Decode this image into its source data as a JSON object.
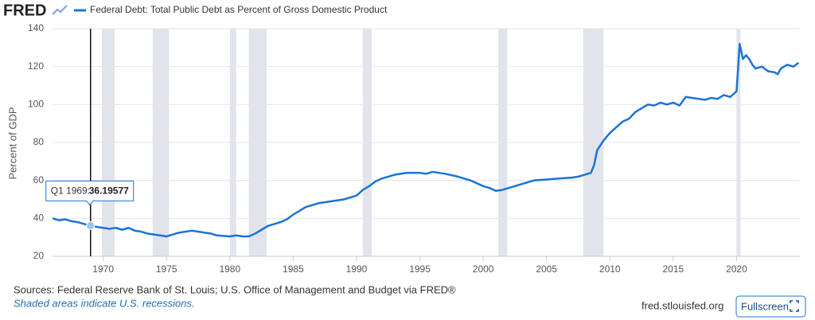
{
  "header": {
    "logo": "FRED"
  },
  "chart_data": {
    "type": "line",
    "y_label": "Percent of GDP",
    "xlim": [
      1966,
      2025
    ],
    "ylim": [
      20,
      140
    ],
    "xticks": [
      1970,
      1975,
      1980,
      1985,
      1990,
      1995,
      2000,
      2005,
      2010,
      2015,
      2020
    ],
    "yticks": [
      20,
      40,
      60,
      80,
      100,
      120,
      140
    ],
    "grid": true,
    "recession_color": "#e1e4ea",
    "recessions": [
      [
        1969.9,
        1970.9
      ],
      [
        1973.9,
        1975.2
      ],
      [
        1980.0,
        1980.5
      ],
      [
        1981.5,
        1982.9
      ],
      [
        1990.5,
        1991.2
      ],
      [
        2001.2,
        2001.9
      ],
      [
        2007.9,
        2009.5
      ],
      [
        2020.0,
        2020.3
      ]
    ],
    "series": [
      {
        "name": "Federal Debt: Total Public Debt as Percent of Gross Domestic Product",
        "color": "#1a74d6",
        "x": [
          1966,
          1966.5,
          1967,
          1967.5,
          1968,
          1968.5,
          1969,
          1969.5,
          1970,
          1970.5,
          1971,
          1971.5,
          1972,
          1972.5,
          1973,
          1973.5,
          1974,
          1974.5,
          1975,
          1975.5,
          1976,
          1977,
          1977.5,
          1978,
          1978.5,
          1979,
          1980,
          1980.5,
          1981,
          1981.5,
          1982,
          1982.5,
          1983,
          1983.5,
          1984,
          1984.5,
          1985,
          1985.5,
          1986,
          1987,
          1988,
          1989,
          1990,
          1990.5,
          1991,
          1991.5,
          1992,
          1993,
          1994,
          1995,
          1995.5,
          1996,
          1997,
          1998,
          1999,
          2000,
          2000.5,
          2001,
          2001.5,
          2002,
          2003,
          2004,
          2005,
          2006,
          2007,
          2007.5,
          2008,
          2008.5,
          2008.75,
          2009,
          2009.5,
          2010,
          2010.5,
          2011,
          2011.5,
          2012,
          2012.5,
          2013,
          2013.5,
          2014,
          2014.5,
          2015,
          2015.5,
          2016,
          2016.5,
          2017,
          2017.5,
          2018,
          2018.5,
          2019,
          2019.5,
          2020,
          2020.25,
          2020.5,
          2020.75,
          2021,
          2021.25,
          2021.5,
          2022,
          2022.5,
          2023,
          2023.25,
          2023.5,
          2024,
          2024.5,
          2024.9
        ],
        "values": [
          40,
          39,
          39.5,
          38.5,
          38,
          37,
          36.19577,
          35.5,
          35,
          34.5,
          35,
          34,
          35,
          33.5,
          33,
          32,
          31.5,
          31,
          30.5,
          31.5,
          32.5,
          33.5,
          33,
          32.5,
          32,
          31,
          30.5,
          31,
          30.5,
          30.5,
          32,
          34,
          36,
          37,
          38,
          39.5,
          42,
          44,
          46,
          48,
          49,
          50,
          52,
          55,
          57,
          59.5,
          61,
          63,
          64,
          64,
          63.5,
          64.5,
          63.5,
          62,
          60,
          57,
          56,
          54.5,
          55,
          56,
          58,
          60,
          60.5,
          61,
          61.5,
          62,
          63,
          64,
          68,
          76,
          81,
          85,
          88,
          91,
          92.5,
          96,
          98,
          100,
          99.5,
          101,
          100,
          101,
          99.5,
          104,
          103.5,
          103,
          102.5,
          103.5,
          103,
          105,
          104,
          107,
          132,
          124,
          126,
          124,
          121,
          119,
          120,
          117.5,
          117,
          116,
          119,
          121,
          120,
          122
        ]
      }
    ],
    "tooltip": {
      "x": 1969,
      "label": "Q1 1969:",
      "value": 36.19577
    }
  },
  "footer": {
    "sources": "Sources: Federal Reserve Bank of St. Louis; U.S. Office of Management and Budget via FRED®",
    "note": "Shaded areas indicate U.S. recessions.",
    "site": "fred.stlouisfed.org",
    "button": "Fullscreen"
  }
}
